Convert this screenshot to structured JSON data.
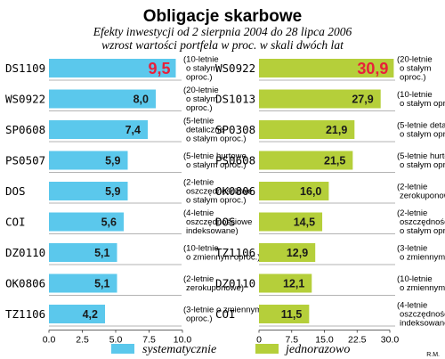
{
  "title": "Obligacje skarbowe",
  "subtitle_line1": "Efekty inwestycji  od 2 sierpnia 2004 do 28 lipca 2006",
  "subtitle_line2": "wzrost wartości portfela w proc. w skali dwóch lat",
  "credit": "R.M.",
  "chart_data": [
    {
      "type": "bar",
      "orientation": "horizontal",
      "name": "systematycznie",
      "color": "#5bc8ec",
      "highlight_color": "#e8203a",
      "xlim": [
        0,
        10
      ],
      "xticks": [
        "0.0",
        "2.5",
        "5.0",
        "7.5",
        "10.0"
      ],
      "tick_values": [
        0,
        2.5,
        5,
        7.5,
        10
      ],
      "categories": [
        "DS1109",
        "WS0922",
        "SP0608",
        "PS0507",
        "DOS",
        "COI",
        "DZ0110",
        "OK0806",
        "TZ1106"
      ],
      "values": [
        9.5,
        8.0,
        7.4,
        5.9,
        5.9,
        5.6,
        5.1,
        5.1,
        4.2
      ],
      "value_labels": [
        "9,5",
        "8,0",
        "7,4",
        "5,9",
        "5,9",
        "5,6",
        "5,1",
        "5,1",
        "4,2"
      ],
      "descriptions": [
        [
          "(10-letnie",
          "o stałym",
          "oproc.)"
        ],
        [
          "(20-letnie",
          "o stałym",
          "oproc.)"
        ],
        [
          "(5-letnie",
          "detaliczne",
          "o stałym oproc.)"
        ],
        [
          "(5-letnie hurtowe",
          "o stałym oproc.)"
        ],
        [
          "(2-letnie",
          "oszczędnościowe",
          "o stałym oproc.)"
        ],
        [
          "(4-letnie",
          "oszczędnościowe",
          "indeksowane)"
        ],
        [
          "(10-letnie",
          "o zmiennym oproc.)"
        ],
        [
          "(2-letnie",
          "zerokuponowe)"
        ],
        [
          "(3-letnie o zmiennym",
          "oproc.)"
        ]
      ]
    },
    {
      "type": "bar",
      "orientation": "horizontal",
      "name": "jednorazowo",
      "color": "#b5cf3a",
      "highlight_color": "#e8203a",
      "xlim": [
        0,
        30
      ],
      "xticks": [
        "0",
        "7.5",
        "15.0",
        "22.5",
        "30.0"
      ],
      "tick_values": [
        0,
        7.5,
        15,
        22.5,
        30
      ],
      "categories": [
        "WS0922",
        "DS1013",
        "SP0308",
        "PS0608",
        "OK0806",
        "DOS",
        "TZ1106",
        "DZ0110",
        "COI"
      ],
      "values": [
        30.9,
        27.9,
        21.9,
        21.5,
        16.0,
        14.5,
        12.9,
        12.1,
        11.5
      ],
      "value_labels": [
        "30,9",
        "27,9",
        "21,9",
        "21,5",
        "16,0",
        "14,5",
        "12,9",
        "12,1",
        "11,5"
      ],
      "descriptions": [
        [
          "(20-letnie",
          "o stałym",
          "oproc.)"
        ],
        [
          "(10-letnie",
          "o stałym oproc.)"
        ],
        [
          "(5-letnie detaliczne",
          "o stałym oproc.)"
        ],
        [
          "(5-letnie hurtowe",
          "o stałym oproc.)"
        ],
        [
          "(2-letnie",
          "zerokuponowe)"
        ],
        [
          "(2-letnie",
          "oszczędnościowe",
          "o stałym oproc.)"
        ],
        [
          "(3-letnie",
          "o zmiennym oproc.)"
        ],
        [
          "(10-letnie",
          "o zmiennym oproc.)"
        ],
        [
          "(4-letnie",
          "oszczędnościowe",
          "indeksowane)"
        ]
      ]
    }
  ]
}
